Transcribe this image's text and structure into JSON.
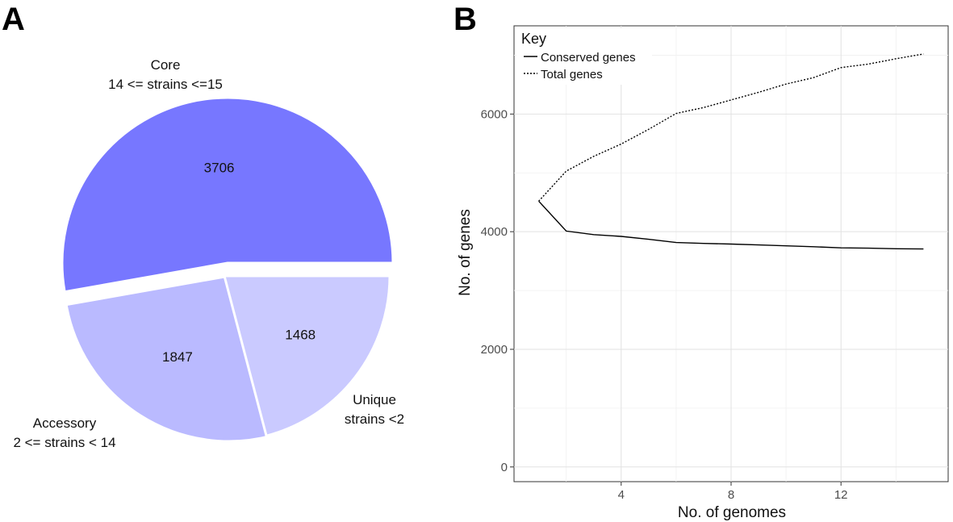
{
  "panels": {
    "a_letter": "A",
    "b_letter": "B"
  },
  "chart_data": [
    {
      "type": "pie",
      "exploded": true,
      "slices": [
        {
          "label_line1": "Core",
          "label_line2": "14 <= strains <=15",
          "value": 3706,
          "color": "#7777ff"
        },
        {
          "label_line1": "Unique",
          "label_line2": "strains <2",
          "value": 1847,
          "color": "#babaff"
        },
        {
          "label_line1": "Accessory",
          "label_line2": "2 <= strains < 14",
          "value": 1468,
          "color": "#cacaff"
        }
      ]
    },
    {
      "type": "line",
      "xlabel": "No. of genomes",
      "ylabel": "No. of genes",
      "xlim": [
        0.1,
        15.9
      ],
      "ylim": [
        -250,
        7500
      ],
      "x_ticks": [
        4,
        8,
        12
      ],
      "y_ticks": [
        0,
        2000,
        4000,
        6000
      ],
      "grid": true,
      "legend": {
        "title": "Key",
        "position": "top-left"
      },
      "series": [
        {
          "name": "Conserved genes",
          "style": "solid",
          "x": [
            1,
            2,
            3,
            4,
            5,
            6,
            7,
            8,
            9,
            10,
            11,
            12,
            13,
            14,
            15
          ],
          "y": [
            4520,
            4010,
            3950,
            3920,
            3870,
            3815,
            3800,
            3790,
            3775,
            3760,
            3745,
            3725,
            3720,
            3710,
            3706
          ]
        },
        {
          "name": "Total genes",
          "style": "dashed",
          "x": [
            1,
            2,
            3,
            4,
            5,
            6,
            7,
            8,
            9,
            10,
            11,
            12,
            13,
            14,
            15
          ],
          "y": [
            4520,
            5030,
            5280,
            5490,
            5740,
            6010,
            6110,
            6240,
            6370,
            6510,
            6620,
            6790,
            6850,
            6940,
            7021
          ]
        }
      ]
    }
  ]
}
